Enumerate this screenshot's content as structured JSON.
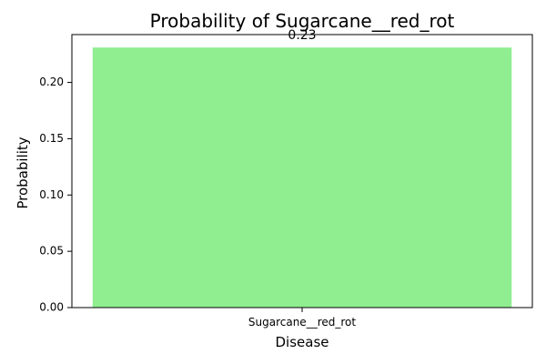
{
  "chart_data": {
    "type": "bar",
    "title": "Probability of Sugarcane__red_rot",
    "xlabel": "Disease",
    "ylabel": "Probability",
    "categories": [
      "Sugarcane__red_rot"
    ],
    "values": [
      0.231
    ],
    "value_labels": [
      "0.23"
    ],
    "ylim": [
      0,
      0.2425
    ],
    "yticks": [
      0.0,
      0.05,
      0.1,
      0.15,
      0.2
    ],
    "ytick_labels": [
      "0.00",
      "0.05",
      "0.10",
      "0.15",
      "0.20"
    ],
    "bar_color": "#90ee90",
    "grid": false,
    "legend": "none"
  }
}
